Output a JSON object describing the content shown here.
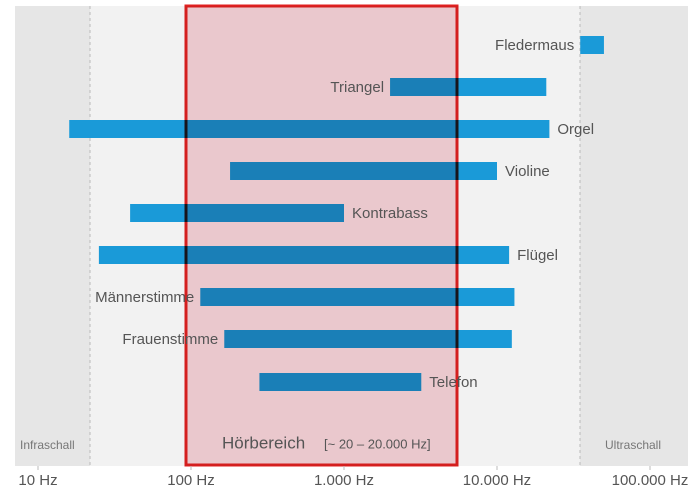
{
  "chart_data": {
    "type": "range_bar",
    "categories": [
      "Fledermaus",
      "Triangel",
      "Orgel",
      "Violine",
      "Kontrabass",
      "Flügel",
      "Männerstimme",
      "Frauenstimme",
      "Telefon"
    ],
    "low": [
      35000,
      2000,
      16,
      180,
      40,
      25,
      115,
      165,
      280
    ],
    "high": [
      50000,
      21000,
      22000,
      10000,
      1000,
      12000,
      13000,
      12500,
      3200
    ],
    "color": "#1a9ad8",
    "log_x": true,
    "xlim": [
      10,
      100000
    ],
    "xticks": [
      {
        "value": 10,
        "label": "10 Hz"
      },
      {
        "value": 100,
        "label": "100 Hz"
      },
      {
        "value": 1000,
        "label": "1.000 Hz"
      },
      {
        "value": 10000,
        "label": "10.000 Hz"
      },
      {
        "value": 100000,
        "label": "100.000 Hz"
      }
    ],
    "annotations": {
      "infra": "Infraschall",
      "ultra": "Ultraschall",
      "range": "Hörbereich",
      "range_note": "[~ 20 – 20.000 Hz]"
    }
  }
}
